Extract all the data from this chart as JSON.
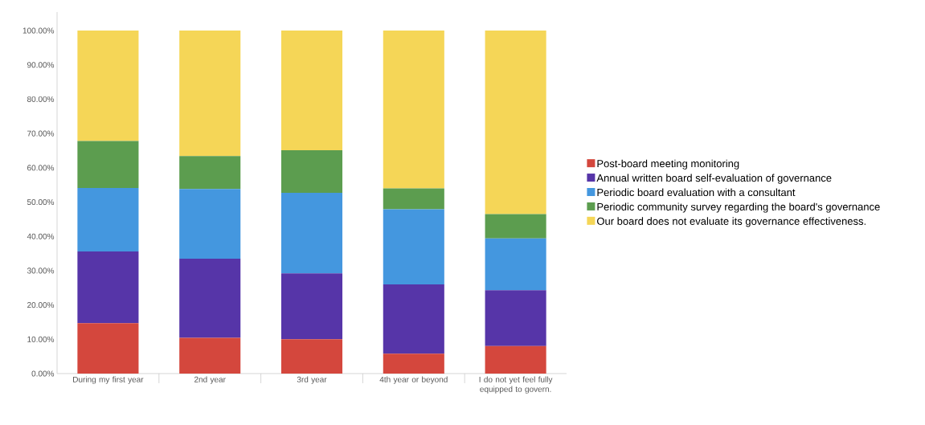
{
  "chart_data": {
    "type": "bar",
    "stacked": true,
    "categories": [
      "During my first year",
      "2nd year",
      "3rd year",
      "4th year or beyond",
      "I do not yet feel fully equipped to govern."
    ],
    "series": [
      {
        "name": "Post-board meeting monitoring",
        "color": "#d4473d",
        "values": [
          14.7,
          10.4,
          10.0,
          5.8,
          8.0
        ]
      },
      {
        "name": "Annual written board self-evaluation of governance",
        "color": "#5635a8",
        "values": [
          20.9,
          23.1,
          19.2,
          20.2,
          16.3
        ]
      },
      {
        "name": "Periodic board evaluation with a consultant",
        "color": "#4497df",
        "values": [
          18.5,
          20.3,
          23.5,
          21.9,
          15.1
        ]
      },
      {
        "name": "Periodic community survey regarding the board's governance",
        "color": "#5c9d4f",
        "values": [
          13.7,
          9.6,
          12.4,
          6.1,
          7.1
        ]
      },
      {
        "name": "Our board does not evaluate its governance effectiveness.",
        "color": "#f5d657",
        "values": [
          32.2,
          36.6,
          34.9,
          46.0,
          53.5
        ]
      }
    ],
    "ylim": [
      0,
      105.4
    ],
    "yticks": [
      {
        "value": 0,
        "label": "0.00%"
      },
      {
        "value": 10,
        "label": "10.00%"
      },
      {
        "value": 20,
        "label": "20.00%"
      },
      {
        "value": 30,
        "label": "30.00%"
      },
      {
        "value": 40,
        "label": "40.00%"
      },
      {
        "value": 50,
        "label": "50.00%"
      },
      {
        "value": 60,
        "label": "60.00%"
      },
      {
        "value": 70,
        "label": "70.00%"
      },
      {
        "value": 80,
        "label": "80.00%"
      },
      {
        "value": 90,
        "label": "90.00%"
      },
      {
        "value": 100,
        "label": "100.00%"
      }
    ],
    "grid": false,
    "legend": "right"
  }
}
